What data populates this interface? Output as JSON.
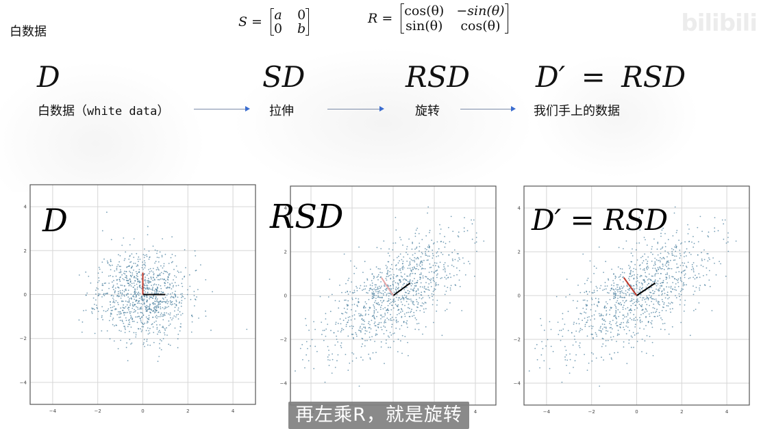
{
  "heading": "白数据",
  "watermark": "bilibili",
  "formulas": {
    "scale": {
      "lhs": "S",
      "eq": "=",
      "matrix": [
        [
          "a",
          "0"
        ],
        [
          "0",
          "b"
        ]
      ]
    },
    "rotation": {
      "lhs": "R",
      "eq": "=",
      "matrix": [
        [
          "cos(θ)",
          "−sin(θ)"
        ],
        [
          "sin(θ)",
          "cos(θ)"
        ]
      ]
    }
  },
  "pipeline": {
    "steps": [
      {
        "math": "D",
        "label_cn": "白数据",
        "label_paren_open": "（",
        "label_en": "white data",
        "label_paren_close": "）"
      },
      {
        "math": "SD",
        "label_cn": "拉伸"
      },
      {
        "math": "RSD",
        "label_cn": "旋转"
      },
      {
        "math_lhs": "D′",
        "math_eq": "=",
        "math_rhs": "RSD",
        "label_cn": "我们手上的数据"
      }
    ],
    "arrow_color": "#3a6ccf"
  },
  "subtitle": "再左乘R，就是旋转",
  "chart_data": [
    {
      "type": "scatter",
      "title": "D",
      "xlim": [
        -5,
        5
      ],
      "ylim": [
        -5,
        5
      ],
      "xticks": [
        -4,
        -2,
        0,
        2,
        4
      ],
      "yticks": [
        -4,
        -2,
        0,
        2,
        4
      ],
      "grid": true,
      "point_color": "#4a7f9e",
      "n_points": 1000,
      "distribution": {
        "sx": 1.0,
        "sy": 1.0,
        "theta_deg": 0,
        "seed": 11
      },
      "basis_vectors": [
        {
          "color": "#000000",
          "from": [
            0,
            0
          ],
          "to": [
            1,
            0
          ]
        },
        {
          "color": "#c0392b",
          "from": [
            0,
            0
          ],
          "to": [
            0,
            1
          ]
        }
      ]
    },
    {
      "type": "scatter",
      "title": "RSD",
      "xlim": [
        -5,
        5
      ],
      "ylim": [
        -5,
        5
      ],
      "xticks": [
        -4,
        -2,
        0,
        2,
        4
      ],
      "yticks": [
        -4,
        -2,
        0,
        2,
        4
      ],
      "grid": true,
      "point_color": "#4a7f9e",
      "n_points": 1000,
      "distribution": {
        "sx": 2.0,
        "sy": 0.9,
        "theta_deg": 35,
        "seed": 23
      },
      "basis_vectors": [
        {
          "color": "#000000",
          "from": [
            0,
            0
          ],
          "to": [
            0.82,
            0.57
          ]
        },
        {
          "color": "#e8a5a5",
          "from": [
            0,
            0
          ],
          "to": [
            -0.57,
            0.82
          ]
        }
      ]
    },
    {
      "type": "scatter",
      "title": "D′ = RSD",
      "xlim": [
        -5,
        5
      ],
      "ylim": [
        -5,
        5
      ],
      "xticks": [
        -4,
        -2,
        0,
        2,
        4
      ],
      "yticks": [
        -4,
        -2,
        0,
        2,
        4
      ],
      "grid": true,
      "point_color": "#4a7f9e",
      "n_points": 1000,
      "distribution": {
        "sx": 2.0,
        "sy": 0.9,
        "theta_deg": 35,
        "seed": 23
      },
      "basis_vectors": [
        {
          "color": "#000000",
          "from": [
            0,
            0
          ],
          "to": [
            0.82,
            0.57
          ]
        },
        {
          "color": "#c0392b",
          "from": [
            0,
            0
          ],
          "to": [
            -0.57,
            0.82
          ]
        }
      ]
    }
  ]
}
